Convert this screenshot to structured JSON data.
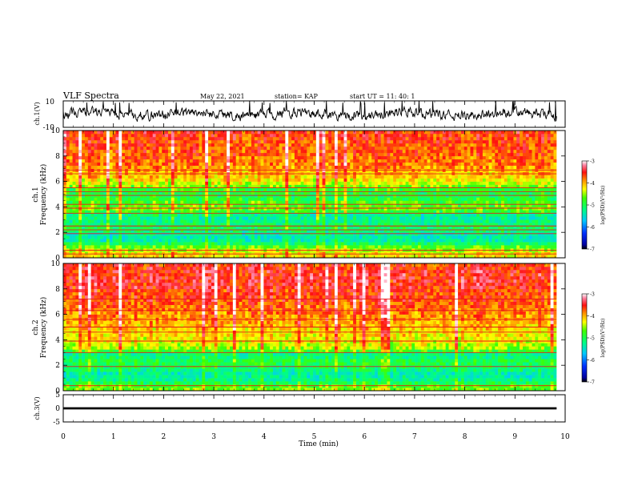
{
  "header": {
    "title": "VLF Spectra",
    "date": "May 22, 2021",
    "station": "station= KAP",
    "start": "start  UT  =   11: 40: 1"
  },
  "chart_data": [
    {
      "type": "line",
      "name": "ch.1 waveform",
      "ylabel": "ch.1(V)",
      "ylim": [
        -10,
        10
      ],
      "yticks": [
        "10",
        "-10"
      ],
      "x_range_min": [
        0,
        9.83
      ],
      "y_range_estimate": [
        -9,
        8
      ],
      "color": "#000000"
    },
    {
      "type": "heatmap",
      "name": "ch.1 spectrogram",
      "ylabel_line1": "ch.1",
      "ylabel_line2": "Frequency  (kHz)",
      "ylim": [
        0,
        10
      ],
      "yticks": [
        "0",
        "2",
        "4",
        "6",
        "8",
        "10"
      ],
      "x_range_min": [
        0,
        9.83
      ],
      "frequency_profile_logPSD": [
        [
          0.3,
          -4.2
        ],
        [
          0.8,
          -4.6
        ],
        [
          1.3,
          -5.3
        ],
        [
          1.8,
          -5.4
        ],
        [
          2.3,
          -5.0
        ],
        [
          2.8,
          -5.2
        ],
        [
          3.3,
          -5.3
        ],
        [
          3.8,
          -4.6
        ],
        [
          4.3,
          -4.7
        ],
        [
          4.8,
          -5.0
        ],
        [
          5.3,
          -4.9
        ],
        [
          5.8,
          -4.4
        ],
        [
          6.3,
          -4.1
        ],
        [
          6.8,
          -4.0
        ],
        [
          7.3,
          -3.8
        ],
        [
          7.8,
          -3.8
        ],
        [
          8.3,
          -3.7
        ],
        [
          8.8,
          -3.7
        ],
        [
          9.3,
          -3.6
        ],
        [
          9.8,
          -3.6
        ]
      ],
      "narrowband_lines_kHz": [
        0.3,
        0.6,
        1.9,
        2.2,
        2.5,
        3.5,
        3.9,
        4.2,
        4.9,
        5.2,
        5.5,
        6.6,
        6.9
      ]
    },
    {
      "type": "heatmap",
      "name": "ch.2 spectrogram",
      "ylabel_line1": "ch.2",
      "ylabel_line2": "Frequency  (kHz)",
      "ylim": [
        0,
        10
      ],
      "yticks": [
        "0",
        "2",
        "4",
        "6",
        "8",
        "10"
      ],
      "x_range_min": [
        0,
        9.83
      ],
      "frequency_profile_logPSD": [
        [
          0.3,
          -4.6
        ],
        [
          0.8,
          -5.2
        ],
        [
          1.3,
          -5.4
        ],
        [
          1.8,
          -5.1
        ],
        [
          2.3,
          -4.9
        ],
        [
          2.8,
          -5.3
        ],
        [
          3.3,
          -4.5
        ],
        [
          3.8,
          -4.3
        ],
        [
          4.3,
          -4.2
        ],
        [
          4.8,
          -4.1
        ],
        [
          5.3,
          -4.0
        ],
        [
          5.8,
          -3.9
        ],
        [
          6.3,
          -3.8
        ],
        [
          6.8,
          -3.7
        ],
        [
          7.3,
          -3.6
        ],
        [
          7.8,
          -3.6
        ],
        [
          8.3,
          -3.5
        ],
        [
          8.8,
          -3.5
        ],
        [
          9.3,
          -3.5
        ],
        [
          9.8,
          -3.6
        ]
      ],
      "narrowband_lines_kHz": [
        0.4,
        1.9,
        3.0,
        3.9,
        4.6,
        5.0,
        5.6,
        6.3,
        7.2
      ]
    },
    {
      "type": "line",
      "name": "ch.3 waveform",
      "ylabel": "ch.3(V)",
      "ylim": [
        -5,
        5
      ],
      "yticks": [
        "5",
        "0",
        "-5"
      ],
      "x_range_min": [
        0,
        9.83
      ],
      "y_range_estimate": [
        -0.4,
        0.4
      ],
      "color": "#000000"
    }
  ],
  "x_axis": {
    "label": "Time  (min)",
    "range": [
      0,
      10
    ],
    "ticks": [
      "0",
      "1",
      "2",
      "3",
      "4",
      "5",
      "6",
      "7",
      "8",
      "9",
      "10"
    ]
  },
  "colorbar": {
    "label": "log(PSD)(V²/Hz)",
    "range": [
      -7,
      -3
    ],
    "ticks": [
      "-3",
      "-4",
      "-5",
      "-6",
      "-7"
    ]
  }
}
